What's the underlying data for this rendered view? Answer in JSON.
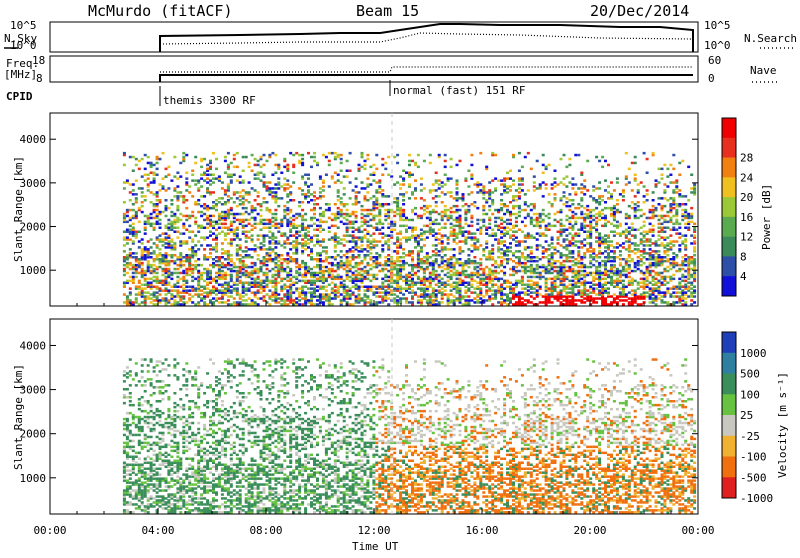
{
  "header": {
    "station": "McMurdo (fitACF)",
    "beam": "Beam 15",
    "date": "20/Dec/2014"
  },
  "top_panels": {
    "nsky_label": "N.Sky",
    "nsky_ticks": [
      "10^5",
      "10^0"
    ],
    "nsearch_label": "N.Search",
    "nsearch_ticks": [
      "10^5",
      "10^0"
    ],
    "freq_label_1": "Freq.",
    "freq_label_2": "[MHz]",
    "freq_ticks": [
      "18",
      "8"
    ],
    "nave_label": "Nave",
    "nave_ticks": [
      "60",
      "0"
    ],
    "cpid_label": "CPID",
    "cpid_segments": [
      {
        "start_hour": 2.7,
        "label": "themis 3300 RF"
      },
      {
        "start_hour": 12.0,
        "label": "normal (fast) 151 RF"
      }
    ]
  },
  "chart_data": [
    {
      "type": "heatmap",
      "name": "power",
      "ylabel": "Slant Range [km]",
      "yticks": [
        "1000",
        "2000",
        "3000",
        "4000"
      ],
      "ylim": [
        180,
        4600
      ],
      "xlim_hours": [
        0,
        24
      ],
      "colorbar_label": "Power [dB]",
      "colorbar_ticks": [
        "4",
        "8",
        "12",
        "16",
        "20",
        "24",
        "28"
      ],
      "colors": [
        "#1010d8",
        "#2e4fa8",
        "#3a8a5a",
        "#5aaa50",
        "#9ac836",
        "#f0c020",
        "#f08010",
        "#e83020",
        "#f00000"
      ],
      "data_start_hour": 2.7
    },
    {
      "type": "heatmap",
      "name": "velocity",
      "ylabel": "Slant Range [km]",
      "yticks": [
        "1000",
        "2000",
        "3000",
        "4000"
      ],
      "ylim": [
        180,
        4600
      ],
      "xlim_hours": [
        0,
        24
      ],
      "colorbar_label": "Velocity [m s⁻¹]",
      "colorbar_ticks": [
        "1000",
        "500",
        "100",
        "25",
        "-25",
        "-100",
        "-500",
        "-1000"
      ],
      "colors": [
        "#1f3fb8",
        "#2f7fa0",
        "#3a8e5a",
        "#66c240",
        "#c8c8c0",
        "#f0b030",
        "#f07010",
        "#e02020"
      ],
      "data_start_hour": 2.7
    }
  ],
  "xaxis": {
    "label": "Time UT",
    "ticks": [
      "00:00",
      "04:00",
      "08:00",
      "12:00",
      "16:00",
      "20:00",
      "00:00"
    ]
  }
}
